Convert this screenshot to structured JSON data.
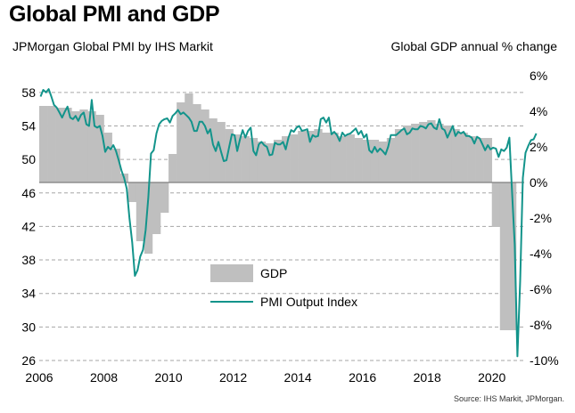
{
  "chart_data": {
    "type": "bar+line",
    "title": "Global PMI and GDP",
    "left_axis_title": "JPMorgan Global PMI by IHS Markit",
    "right_axis_title": "Global GDP annual % change",
    "source": "Source: IHS Markit, JPMorgan.",
    "left_axis": {
      "range": [
        26,
        60
      ],
      "ticks": [
        26,
        30,
        34,
        38,
        42,
        46,
        50,
        54,
        58
      ]
    },
    "right_axis": {
      "range": [
        -10,
        6
      ],
      "ticks": [
        "6%",
        "4%",
        "2%",
        "0%",
        "-2%",
        "-4%",
        "-6%",
        "-8%",
        "-10%"
      ]
    },
    "x_axis": {
      "range": [
        2006,
        2021
      ],
      "tick_labels": [
        "2006",
        "2008",
        "2010",
        "2012",
        "2014",
        "2016",
        "2018",
        "2020"
      ]
    },
    "legend": {
      "placement": "center",
      "entries": [
        "GDP",
        "PMI Output Index"
      ]
    },
    "colors": {
      "gdp": "#bfbfbf",
      "pmi": "#13948b",
      "grid": "#a6a6a6"
    },
    "gdp_quarterly": {
      "name": "GDP",
      "start": "2006 Q1",
      "values": [
        4.3,
        4.3,
        4.2,
        4.2,
        4.0,
        4.1,
        4.0,
        3.8,
        2.8,
        1.9,
        0.5,
        -1.1,
        -3.3,
        -4.0,
        -2.9,
        -1.7,
        1.6,
        4.5,
        5.0,
        4.4,
        4.1,
        3.6,
        3.4,
        3.0,
        2.7,
        2.6,
        2.5,
        2.3,
        2.2,
        2.4,
        2.6,
        2.7,
        2.9,
        2.9,
        3.0,
        2.8,
        2.8,
        2.6,
        2.7,
        2.5,
        2.4,
        2.4,
        2.3,
        2.5,
        3.0,
        3.2,
        3.3,
        3.4,
        3.5,
        3.3,
        3.2,
        3.0,
        2.8,
        2.6,
        2.5,
        2.5,
        -2.5,
        -8.3,
        -8.3
      ]
    },
    "pmi_monthly": {
      "name": "PMI Output Index",
      "start": "2006-01",
      "values": [
        57.5,
        58.3,
        58.0,
        58.4,
        57.5,
        56.5,
        56.2,
        55.6,
        55.0,
        55.7,
        56.3,
        55.0,
        54.8,
        55.2,
        54.6,
        55.3,
        55.6,
        54.2,
        54.0,
        57.1,
        54.0,
        53.8,
        54.0,
        52.8,
        50.9,
        51.5,
        51.2,
        51.7,
        51.0,
        49.9,
        48.7,
        47.8,
        46.5,
        43.0,
        40.1,
        36.1,
        36.8,
        38.4,
        39.2,
        41.6,
        45.5,
        50.7,
        51.1,
        53.1,
        54.2,
        54.6,
        54.8,
        54.9,
        54.4,
        55.2,
        55.5,
        55.9,
        55.4,
        55.6,
        55.3,
        55.0,
        54.5,
        53.4,
        53.4,
        54.5,
        54.5,
        54.0,
        53.1,
        53.6,
        51.8,
        51.0,
        52.1,
        50.9,
        49.8,
        49.9,
        51.5,
        53.0,
        52.9,
        51.0,
        52.4,
        53.5,
        52.6,
        53.4,
        53.8,
        51.0,
        50.5,
        51.8,
        52.1,
        51.7,
        51.5,
        50.5,
        50.6,
        52.0,
        51.8,
        51.8,
        52.1,
        51.2,
        52.6,
        53.5,
        53.3,
        53.8,
        54.0,
        53.4,
        53.5,
        53.6,
        52.1,
        52.9,
        52.7,
        52.8,
        54.8,
        55.0,
        54.4,
        55.0,
        53.0,
        53.3,
        52.9,
        52.2,
        53.2,
        52.8,
        53.0,
        53.1,
        53.4,
        53.7,
        53.0,
        53.4,
        52.6,
        53.0,
        51.1,
        50.8,
        51.5,
        50.9,
        51.3,
        51.0,
        50.6,
        51.5,
        52.9,
        52.9,
        52.9,
        53.2,
        53.5,
        53.7,
        53.0,
        53.2,
        53.7,
        53.6,
        53.6,
        54.0,
        53.9,
        53.7,
        54.2,
        54.3,
        53.8,
        53.6,
        54.8,
        53.7,
        53.5,
        52.6,
        53.3,
        54.0,
        52.8,
        53.3,
        53.1,
        53.3,
        52.8,
        52.8,
        52.6,
        51.9,
        52.7,
        52.5,
        51.8,
        51.1,
        51.7,
        51.2,
        51.4,
        51.3,
        50.3,
        51.2,
        51.0,
        51.4,
        52.6,
        46.1,
        39.8,
        26.5,
        35.5,
        47.8,
        50.8,
        51.6,
        52.3,
        52.4,
        53.1
      ]
    }
  }
}
